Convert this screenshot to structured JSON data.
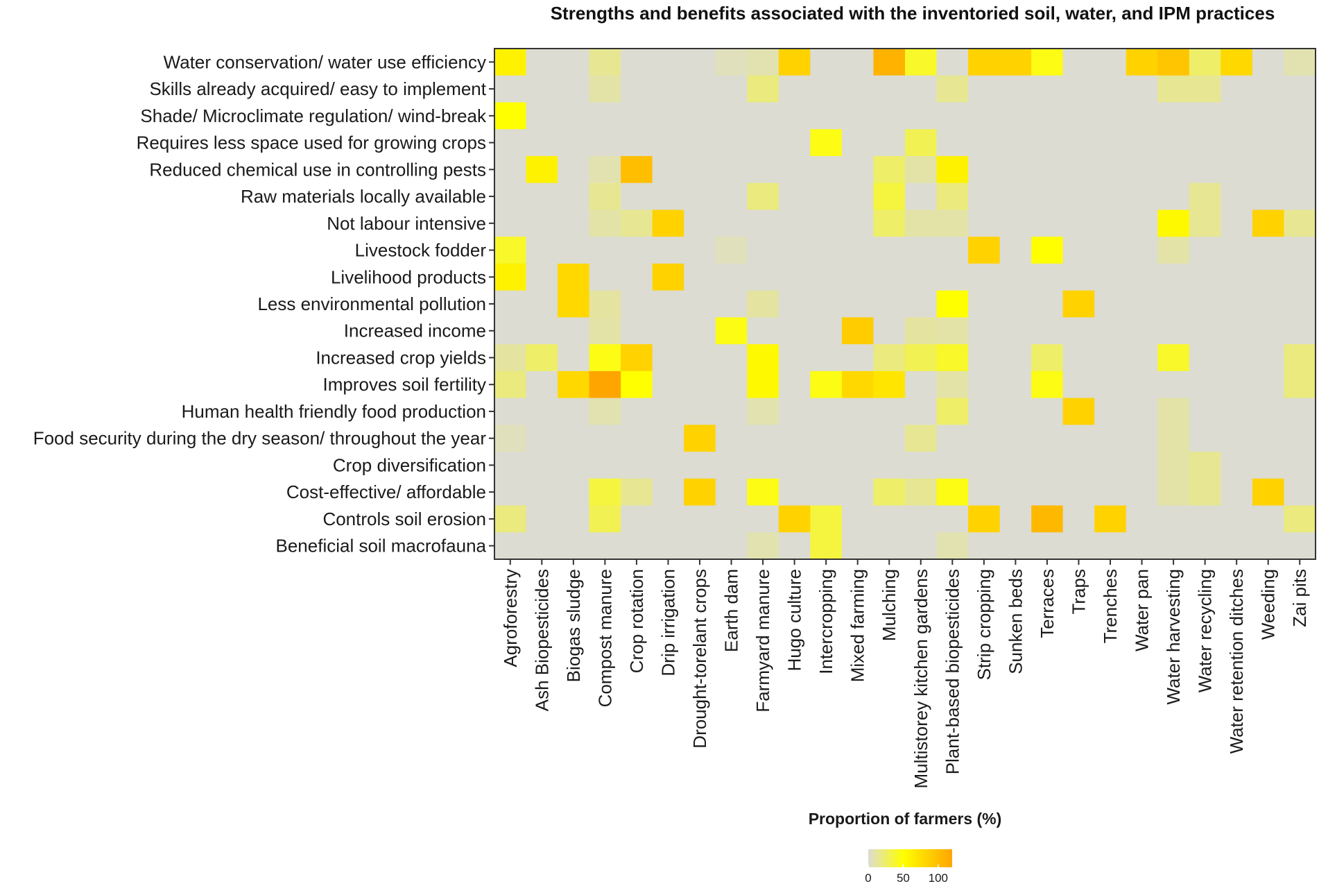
{
  "chart_data": {
    "type": "heatmap",
    "title": "Strengths and benefits associated with the inventoried soil, water, and IPM practices",
    "xlabel": "Proportion of farmers (%)",
    "ylabel": "",
    "colorbar": {
      "ticks": [
        "0",
        "50",
        "100"
      ],
      "range": [
        0,
        120
      ],
      "colors": [
        "#dcdcd2",
        "#ffff00",
        "#ffa500"
      ]
    },
    "columns": [
      "Agroforestry",
      "Ash Biopesticides",
      "Biogas sludge",
      "Compost manure",
      "Crop rotation",
      "Drip irrigation",
      "Drought-torelant crops",
      "Earth dam",
      "Farmyard manure",
      "Hugo culture",
      "Intercropping",
      "Mixed farming",
      "Mulching",
      "Multistorey kitchen gardens",
      "Plant-based biopesticides",
      "Strip cropping",
      "Sunken beds",
      "Terraces",
      "Traps",
      "Trenches",
      "Water  pan",
      "Water harvesting",
      "Water recycling",
      "Water retention ditches",
      "Weeding",
      "Zai pits"
    ],
    "rows": [
      "Water conservation/ water use efficiency",
      "Skills already acquired/ easy to implement",
      "Shade/ Microclimate regulation/ wind-break",
      "Requires less space used for growing crops",
      "Reduced chemical use in controlling pests",
      "Raw materials locally available",
      "Not labour intensive",
      "Livestock fodder",
      "Livelihood products",
      "Less environmental pollution",
      "Increased income",
      "Increased crop yields",
      "Improves soil fertility",
      "Human health friendly food production",
      "Food security during the dry season/ throughout the year",
      "Crop diversification",
      "Cost-effective/ affordable",
      "Controls soil erosion",
      "Beneficial soil macrofauna"
    ],
    "values": [
      [
        60,
        0,
        0,
        15,
        0,
        0,
        0,
        5,
        8,
        85,
        0,
        0,
        110,
        40,
        0,
        85,
        85,
        45,
        0,
        0,
        85,
        95,
        25,
        80,
        0,
        8
      ],
      [
        0,
        0,
        0,
        10,
        0,
        0,
        0,
        0,
        20,
        0,
        0,
        0,
        0,
        0,
        15,
        0,
        0,
        0,
        0,
        0,
        0,
        15,
        15,
        0,
        0,
        0
      ],
      [
        50,
        0,
        0,
        0,
        0,
        0,
        0,
        0,
        0,
        0,
        0,
        0,
        0,
        0,
        0,
        0,
        0,
        0,
        0,
        0,
        0,
        0,
        0,
        0,
        0,
        0
      ],
      [
        0,
        0,
        0,
        0,
        0,
        0,
        0,
        0,
        0,
        0,
        45,
        0,
        0,
        30,
        0,
        0,
        0,
        0,
        0,
        0,
        0,
        0,
        0,
        0,
        0,
        0
      ],
      [
        0,
        60,
        0,
        8,
        100,
        0,
        0,
        0,
        0,
        0,
        0,
        0,
        25,
        10,
        60,
        0,
        0,
        0,
        0,
        0,
        0,
        0,
        0,
        0,
        0,
        0
      ],
      [
        0,
        0,
        0,
        15,
        0,
        0,
        0,
        0,
        20,
        0,
        0,
        0,
        35,
        0,
        20,
        0,
        0,
        0,
        0,
        0,
        0,
        0,
        15,
        0,
        0,
        0
      ],
      [
        0,
        0,
        0,
        10,
        15,
        85,
        0,
        0,
        0,
        0,
        0,
        0,
        25,
        10,
        10,
        0,
        0,
        0,
        0,
        0,
        0,
        55,
        15,
        0,
        85,
        15
      ],
      [
        40,
        0,
        0,
        0,
        0,
        0,
        0,
        5,
        0,
        0,
        0,
        0,
        0,
        0,
        0,
        85,
        0,
        50,
        0,
        0,
        0,
        10,
        0,
        0,
        0,
        0
      ],
      [
        60,
        0,
        80,
        0,
        0,
        85,
        0,
        0,
        0,
        0,
        0,
        0,
        0,
        0,
        0,
        0,
        0,
        0,
        0,
        0,
        0,
        0,
        0,
        0,
        0,
        0
      ],
      [
        0,
        0,
        80,
        12,
        0,
        0,
        0,
        0,
        12,
        0,
        0,
        0,
        0,
        0,
        50,
        0,
        0,
        0,
        85,
        0,
        0,
        0,
        0,
        0,
        0,
        0
      ],
      [
        0,
        0,
        0,
        10,
        0,
        0,
        0,
        45,
        0,
        0,
        0,
        90,
        0,
        12,
        10,
        0,
        0,
        0,
        0,
        0,
        0,
        0,
        0,
        0,
        0,
        0
      ],
      [
        12,
        25,
        0,
        45,
        85,
        0,
        0,
        0,
        55,
        0,
        0,
        0,
        20,
        30,
        40,
        0,
        0,
        25,
        0,
        0,
        0,
        40,
        0,
        0,
        0,
        20
      ],
      [
        20,
        0,
        80,
        120,
        50,
        0,
        0,
        0,
        55,
        0,
        45,
        80,
        70,
        0,
        10,
        0,
        0,
        45,
        0,
        0,
        0,
        0,
        0,
        0,
        0,
        20
      ],
      [
        0,
        0,
        0,
        8,
        0,
        0,
        0,
        0,
        8,
        0,
        0,
        0,
        0,
        0,
        25,
        0,
        0,
        0,
        85,
        0,
        0,
        10,
        0,
        0,
        0,
        0
      ],
      [
        5,
        0,
        0,
        0,
        0,
        0,
        85,
        0,
        0,
        0,
        0,
        0,
        0,
        15,
        0,
        0,
        0,
        0,
        0,
        0,
        0,
        10,
        0,
        0,
        0,
        0
      ],
      [
        0,
        0,
        0,
        0,
        0,
        0,
        0,
        0,
        0,
        0,
        0,
        0,
        0,
        0,
        0,
        0,
        0,
        0,
        0,
        0,
        0,
        10,
        15,
        0,
        0,
        0
      ],
      [
        0,
        0,
        0,
        35,
        15,
        0,
        85,
        0,
        45,
        0,
        0,
        0,
        25,
        15,
        45,
        0,
        0,
        0,
        0,
        0,
        0,
        10,
        15,
        0,
        85,
        0
      ],
      [
        20,
        0,
        0,
        30,
        0,
        0,
        0,
        0,
        0,
        85,
        35,
        0,
        0,
        0,
        0,
        85,
        0,
        105,
        0,
        85,
        0,
        0,
        0,
        0,
        0,
        20
      ],
      [
        0,
        0,
        0,
        0,
        0,
        0,
        0,
        0,
        8,
        0,
        35,
        0,
        0,
        0,
        8,
        0,
        0,
        0,
        0,
        0,
        0,
        0,
        0,
        0,
        0,
        0
      ]
    ]
  }
}
